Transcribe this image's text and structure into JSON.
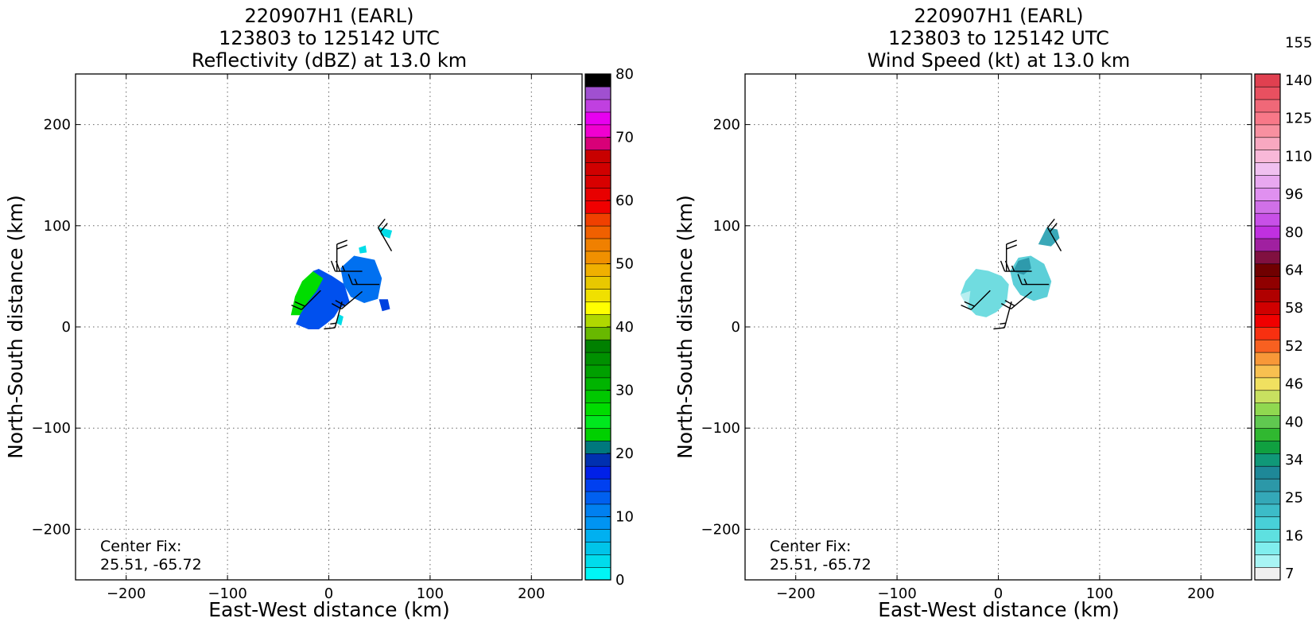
{
  "chart_data": [
    {
      "type": "heatmap",
      "title": [
        "220907H1 (EARL)",
        "123803 to 125142 UTC",
        "Reflectivity (dBZ) at 13.0 km"
      ],
      "xlabel": "East-West distance (km)",
      "ylabel": "North-South distance (km)",
      "xlim": [
        -250,
        250
      ],
      "ylim": [
        -250,
        250
      ],
      "xticks": [
        -200,
        -100,
        0,
        100,
        200
      ],
      "yticks": [
        -200,
        -100,
        0,
        100,
        200
      ],
      "tick_labels": [
        "−200",
        "−100",
        "0",
        "100",
        "200"
      ],
      "grid": true,
      "annotation": [
        "Center Fix:",
        "25.51, -65.72"
      ],
      "colorbar": {
        "min": 0,
        "max": 80,
        "n_levels": 40,
        "tick_values": [
          0,
          10,
          20,
          30,
          40,
          50,
          60,
          70,
          80
        ],
        "tick_labels": [
          "0",
          "10",
          "20",
          "30",
          "40",
          "50",
          "60",
          "70",
          "80"
        ],
        "colors": [
          "#00f5f5",
          "#00dcec",
          "#00c4e9",
          "#00b0f0",
          "#0094f2",
          "#0080f0",
          "#0060f0",
          "#0040f0",
          "#0020e8",
          "#0030b0",
          "#00787d",
          "#00d000",
          "#00e81e",
          "#00dc00",
          "#00c800",
          "#00b400",
          "#00a000",
          "#009000",
          "#008000",
          "#68b800",
          "#b0d800",
          "#ffff00",
          "#f0e000",
          "#e8c800",
          "#f0b000",
          "#f09000",
          "#f08000",
          "#f06000",
          "#f04000",
          "#f00000",
          "#e80000",
          "#d80000",
          "#d00000",
          "#c80000",
          "#d80078",
          "#f000d0",
          "#e800f0",
          "#c040e0",
          "#a050d0",
          "#7840a8"
        ],
        "top_color": "#000000"
      },
      "echo_regions": [
        {
          "level": "20-26 dBZ",
          "color": "#00dd00",
          "polygon": [
            [
              -37,
              12
            ],
            [
              -33,
              30
            ],
            [
              -26,
              45
            ],
            [
              -15,
              55
            ],
            [
              -5,
              48
            ],
            [
              -12,
              35
            ],
            [
              -20,
              25
            ],
            [
              -28,
              12
            ]
          ]
        },
        {
          "level": "10-20 dBZ",
          "color": "#0050ee",
          "polygon": [
            [
              -28,
              12
            ],
            [
              -20,
              25
            ],
            [
              -12,
              35
            ],
            [
              -5,
              48
            ],
            [
              -15,
              55
            ],
            [
              -10,
              57
            ],
            [
              3,
              50
            ],
            [
              15,
              42
            ],
            [
              20,
              25
            ],
            [
              10,
              18
            ],
            [
              5,
              10
            ],
            [
              -2,
              4
            ],
            [
              -10,
              -2
            ],
            [
              -20,
              -2
            ],
            [
              -32,
              3
            ]
          ]
        },
        {
          "level": "10-16 dBZ",
          "color": "#0070f0",
          "polygon": [
            [
              12,
              58
            ],
            [
              25,
              70
            ],
            [
              45,
              66
            ],
            [
              52,
              48
            ],
            [
              48,
              28
            ],
            [
              35,
              24
            ],
            [
              22,
              30
            ],
            [
              15,
              42
            ]
          ]
        },
        {
          "level": "10-12 dBZ",
          "color": "#0040e0",
          "polygon": [
            [
              50,
              27
            ],
            [
              58,
              27
            ],
            [
              60,
              18
            ],
            [
              53,
              16
            ]
          ]
        },
        {
          "level": "2-4 dBZ",
          "color": "#00dde8",
          "polygon": [
            [
              30,
              78
            ],
            [
              36,
              80
            ],
            [
              37,
              74
            ],
            [
              31,
              73
            ]
          ]
        },
        {
          "level": "2-4 dBZ",
          "color": "#00dde8",
          "polygon": [
            [
              50,
              98
            ],
            [
              62,
              95
            ],
            [
              60,
              88
            ],
            [
              52,
              91
            ]
          ]
        },
        {
          "level": "2-4 dBZ",
          "color": "#00dde8",
          "polygon": [
            [
              10,
              12
            ],
            [
              14,
              10
            ],
            [
              12,
              2
            ],
            [
              8,
              4
            ]
          ]
        }
      ],
      "wind_barbs": [
        {
          "x": -8,
          "y": 36,
          "dir": 225,
          "kt": 20
        },
        {
          "x": 13,
          "y": 25,
          "dir": 195,
          "kt": 15
        },
        {
          "x": 8,
          "y": 55,
          "dir": 0,
          "kt": 20
        },
        {
          "x": 33,
          "y": 55,
          "dir": 270,
          "kt": 25
        },
        {
          "x": 33,
          "y": 35,
          "dir": 230,
          "kt": 20
        },
        {
          "x": 50,
          "y": 42,
          "dir": 270,
          "kt": 15
        },
        {
          "x": 62,
          "y": 75,
          "dir": 330,
          "kt": 20
        }
      ]
    },
    {
      "type": "heatmap",
      "title": [
        "220907H1 (EARL)",
        "123803 to 125142 UTC",
        "Wind Speed (kt) at 13.0 km"
      ],
      "xlabel": "East-West distance (km)",
      "ylabel": "North-South distance (km)",
      "xlim": [
        -250,
        250
      ],
      "ylim": [
        -250,
        250
      ],
      "xticks": [
        -200,
        -100,
        0,
        100,
        200
      ],
      "yticks": [
        -200,
        -100,
        0,
        100,
        200
      ],
      "tick_labels": [
        "−200",
        "−100",
        "0",
        "100",
        "200"
      ],
      "grid": true,
      "annotation": [
        "Center Fix:",
        "25.51, -65.72"
      ],
      "colorbar": {
        "n_levels": 40,
        "tick_labels": [
          "7",
          "16",
          "25",
          "34",
          "40",
          "46",
          "52",
          "58",
          "64",
          "80",
          "96",
          "110",
          "125",
          "140",
          "155"
        ],
        "tick_levels": [
          0,
          3,
          6,
          9,
          12,
          15,
          18,
          21,
          24,
          27,
          30,
          33,
          36,
          39,
          42
        ],
        "colors": [
          "#f0f0f0",
          "#a8f4f4",
          "#80eeee",
          "#5ee0e0",
          "#48d0d8",
          "#3cbcc8",
          "#34a8b8",
          "#2c98a8",
          "#1e8898",
          "#109878",
          "#10a040",
          "#30b830",
          "#60c850",
          "#90d850",
          "#c8e060",
          "#f0e060",
          "#f8c050",
          "#f89838",
          "#f86020",
          "#f83010",
          "#f00000",
          "#d00000",
          "#b00000",
          "#900000",
          "#700000",
          "#801040",
          "#a020a0",
          "#c030e0",
          "#c850e8",
          "#d070e8",
          "#e090f0",
          "#e8a8f0",
          "#f0c0f0",
          "#f8b8d8",
          "#f8a8c0",
          "#f890a0",
          "#f87888",
          "#f06878",
          "#e85060",
          "#e04050",
          "#c83048",
          "#b02040",
          "#a01840",
          "#901040"
        ]
      },
      "speed_regions": [
        {
          "level": "16-25 kt",
          "color": "#70dce0",
          "polygon": [
            [
              -37,
              32
            ],
            [
              -32,
              45
            ],
            [
              -22,
              57
            ],
            [
              -10,
              55
            ],
            [
              3,
              50
            ],
            [
              10,
              42
            ],
            [
              8,
              25
            ],
            [
              -2,
              15
            ],
            [
              -12,
              10
            ],
            [
              -22,
              12
            ],
            [
              -30,
              20
            ]
          ]
        },
        {
          "level": "10-16 kt",
          "color": "#b8eef0",
          "polygon": [
            [
              -37,
              32
            ],
            [
              -30,
              20
            ],
            [
              -28,
              35
            ]
          ]
        },
        {
          "level": "16-25 kt",
          "color": "#5ccfd8",
          "polygon": [
            [
              12,
              55
            ],
            [
              20,
              68
            ],
            [
              32,
              70
            ],
            [
              45,
              62
            ],
            [
              52,
              45
            ],
            [
              48,
              30
            ],
            [
              35,
              26
            ],
            [
              22,
              32
            ],
            [
              15,
              42
            ]
          ]
        },
        {
          "level": "25-34 kt",
          "color": "#2e9aac",
          "polygon": [
            [
              15,
              55
            ],
            [
              20,
              65
            ],
            [
              30,
              68
            ],
            [
              32,
              58
            ],
            [
              25,
              52
            ]
          ]
        },
        {
          "level": "25-34 kt",
          "color": "#3aa8b8",
          "polygon": [
            [
              40,
              82
            ],
            [
              48,
              98
            ],
            [
              58,
              96
            ],
            [
              60,
              88
            ],
            [
              52,
              80
            ]
          ]
        }
      ],
      "wind_barbs": [
        {
          "x": -8,
          "y": 36,
          "dir": 225,
          "kt": 20
        },
        {
          "x": 13,
          "y": 25,
          "dir": 195,
          "kt": 15
        },
        {
          "x": 8,
          "y": 55,
          "dir": 0,
          "kt": 20
        },
        {
          "x": 33,
          "y": 55,
          "dir": 270,
          "kt": 25
        },
        {
          "x": 33,
          "y": 35,
          "dir": 230,
          "kt": 20
        },
        {
          "x": 50,
          "y": 42,
          "dir": 270,
          "kt": 15
        },
        {
          "x": 62,
          "y": 75,
          "dir": 330,
          "kt": 20
        }
      ]
    }
  ]
}
